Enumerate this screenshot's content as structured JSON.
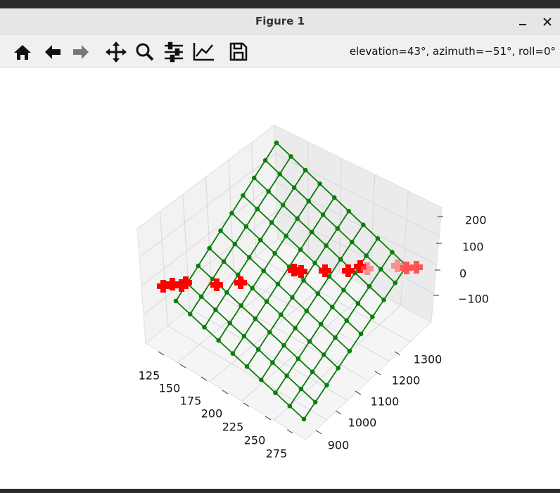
{
  "window": {
    "title": "Figure 1"
  },
  "toolbar": {
    "status": "elevation=43°, azimuth=−51°, roll=0°"
  },
  "axes": {
    "x_ticks": [
      "125",
      "150",
      "175",
      "200",
      "225",
      "250",
      "275"
    ],
    "y_ticks": [
      "900",
      "1000",
      "1100",
      "1200",
      "1300"
    ],
    "z_ticks": [
      "200",
      "100",
      "0",
      "−100"
    ]
  }
}
